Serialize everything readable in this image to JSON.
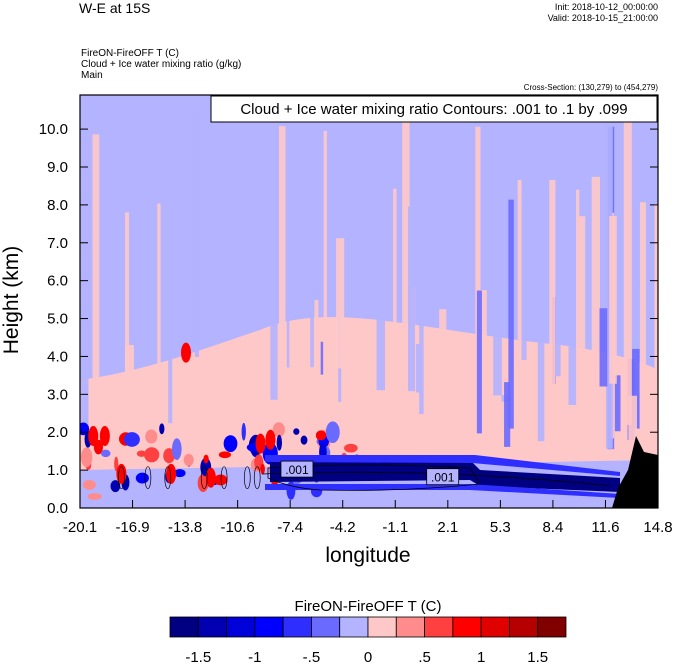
{
  "header": {
    "title": "W-E at 15S",
    "init": "Init: 2018-10-12_00:00:00",
    "valid": "Valid: 2018-10-15_21:00:00",
    "var_line1": "FireON-FireOFF T   (C)",
    "var_line2": "Cloud + Ice water mixing ratio   (g/kg)",
    "var_line3": "Main",
    "cross_section": "Cross-Section: (130,279) to (454,279)"
  },
  "chart_data": {
    "type": "heatmap",
    "title": "W-E at 15S",
    "xlabel": "longitude",
    "ylabel": "Height (km)",
    "x_ticks": [
      "-20.1",
      "-16.9",
      "-13.8",
      "-10.6",
      "-7.4",
      "-4.2",
      "-1.1",
      "2.1",
      "5.3",
      "8.4",
      "11.6",
      "14.8"
    ],
    "y_ticks": [
      "0.0",
      "1.0",
      "2.0",
      "3.0",
      "4.0",
      "5.0",
      "6.0",
      "7.0",
      "8.0",
      "9.0",
      "10.0"
    ],
    "xlim": [
      -20.1,
      14.8
    ],
    "ylim": [
      0,
      10.9
    ],
    "contour_info": "Cloud + Ice water mixing ratio Contours: .001 to .1 by .099",
    "contour_labels": [
      {
        "text": ".001",
        "lon": -7.0,
        "height": 1.0
      },
      {
        "text": ".001",
        "lon": 1.8,
        "height": 0.8
      }
    ],
    "colorbar": {
      "title": "FireON-FireOFF  T  (C)",
      "labels": [
        "-1.5",
        "-1",
        "-.5",
        "0",
        ".5",
        "1",
        "1.5"
      ],
      "colors": [
        "#000080",
        "#0000b0",
        "#0000d8",
        "#0000ff",
        "#2e2eff",
        "#6a6aff",
        "#b3b3ff",
        "#ffc8c8",
        "#ff8c8c",
        "#ff4040",
        "#ff0000",
        "#e00000",
        "#b40000",
        "#800000"
      ]
    },
    "features": {
      "background_low_lat": "#b3b3ff",
      "background_warm": "#ffc8c8",
      "terrain_color": "#000000"
    }
  }
}
